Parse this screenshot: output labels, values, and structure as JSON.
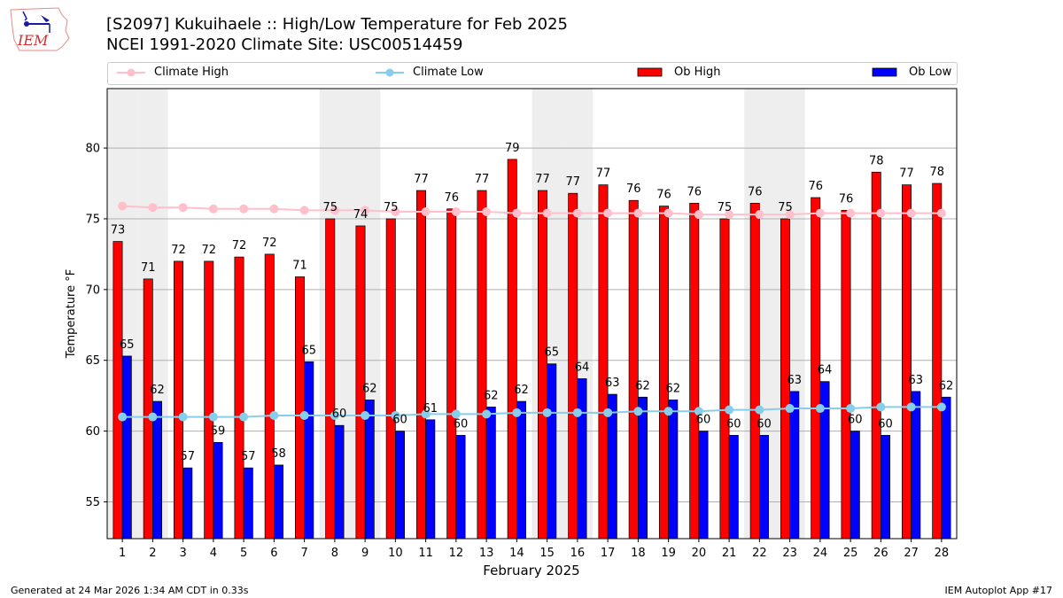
{
  "header": {
    "title_line1": "[S2097] Kukuihaele :: High/Low Temperature for Feb 2025",
    "title_line2": "NCEI 1991-2020 Climate Site: USC00514459",
    "logo_text": "IEM"
  },
  "footer": {
    "generated": "Generated at 24 Mar 2026 1:34 AM CDT in 0.33s",
    "app": "IEM Autoplot App #17"
  },
  "colors": {
    "climate_high": "#ffc0cb",
    "climate_low": "#87ceeb",
    "ob_high": "#ff0000",
    "ob_low": "#0000ff",
    "weekend_band": "#eeeeee",
    "grid": "#b0b0b0"
  },
  "chart_data": {
    "type": "bar",
    "title": "[S2097] Kukuihaele :: High/Low Temperature for Feb 2025",
    "subtitle": "NCEI 1991-2020 Climate Site: USC00514459",
    "xlabel": "February 2025",
    "ylabel": "Temperature °F",
    "ylim": [
      52.4,
      84.2
    ],
    "yticks": [
      55,
      60,
      65,
      70,
      75,
      80
    ],
    "grid": "y",
    "legend_position": "top",
    "weekend_days": [
      1,
      2,
      8,
      9,
      15,
      16,
      22,
      23
    ],
    "categories": [
      1,
      2,
      3,
      4,
      5,
      6,
      7,
      8,
      9,
      10,
      11,
      12,
      13,
      14,
      15,
      16,
      17,
      18,
      19,
      20,
      21,
      22,
      23,
      24,
      25,
      26,
      27,
      28
    ],
    "series": [
      {
        "name": "Climate High",
        "kind": "line",
        "values": [
          75.9,
          75.8,
          75.8,
          75.7,
          75.7,
          75.7,
          75.6,
          75.6,
          75.6,
          75.5,
          75.5,
          75.5,
          75.5,
          75.4,
          75.4,
          75.4,
          75.4,
          75.4,
          75.4,
          75.3,
          75.3,
          75.3,
          75.3,
          75.4,
          75.4,
          75.4,
          75.4,
          75.4
        ]
      },
      {
        "name": "Climate Low",
        "kind": "line",
        "values": [
          61.0,
          61.0,
          61.0,
          61.0,
          61.0,
          61.1,
          61.1,
          61.1,
          61.1,
          61.1,
          61.2,
          61.2,
          61.2,
          61.3,
          61.3,
          61.3,
          61.3,
          61.4,
          61.4,
          61.4,
          61.5,
          61.5,
          61.6,
          61.6,
          61.6,
          61.7,
          61.7,
          61.7
        ]
      },
      {
        "name": "Ob High",
        "kind": "bar",
        "values": [
          73.4,
          70.75,
          72.0,
          72.0,
          72.3,
          72.5,
          70.9,
          75.0,
          74.5,
          75.0,
          77.0,
          75.7,
          77.0,
          79.2,
          77.0,
          76.8,
          77.4,
          76.3,
          75.9,
          76.1,
          75.0,
          76.1,
          75.0,
          76.5,
          75.6,
          78.3,
          77.4,
          77.5
        ],
        "labels": [
          "73",
          "71",
          "72",
          "72",
          "72",
          "72",
          "71",
          "75",
          "74",
          "75",
          "77",
          "76",
          "77",
          "79",
          "77",
          "77",
          "77",
          "76",
          "76",
          "76",
          "75",
          "76",
          "75",
          "76",
          "76",
          "78",
          "77",
          "78"
        ]
      },
      {
        "name": "Ob Low",
        "kind": "bar",
        "values": [
          65.3,
          62.1,
          57.4,
          59.2,
          57.4,
          57.6,
          64.9,
          60.4,
          62.2,
          60.0,
          60.8,
          59.7,
          61.7,
          62.1,
          64.75,
          63.7,
          62.6,
          62.4,
          62.2,
          60.0,
          59.7,
          59.7,
          62.8,
          63.5,
          60.0,
          59.7,
          62.8,
          62.4
        ],
        "labels": [
          "65",
          "62",
          "57",
          "59",
          "57",
          "58",
          "65",
          "60",
          "62",
          "60",
          "61",
          "60",
          "62",
          "62",
          "65",
          "64",
          "63",
          "62",
          "62",
          "60",
          "60",
          "60",
          "63",
          "64",
          "60",
          "60",
          "63",
          "62"
        ]
      }
    ]
  }
}
